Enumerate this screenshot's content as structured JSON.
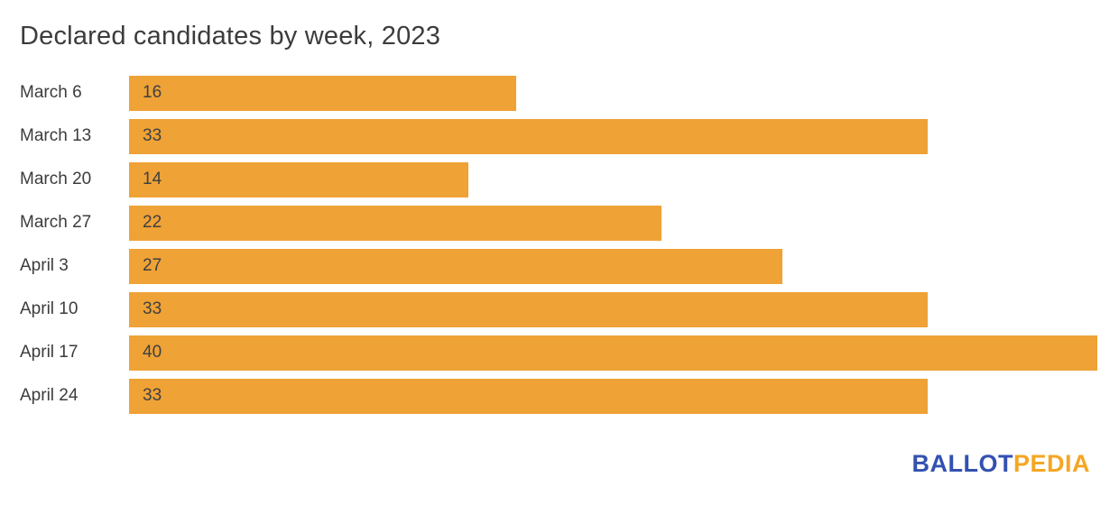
{
  "title": "Declared candidates by week, 2023",
  "chart_data": {
    "type": "bar",
    "orientation": "horizontal",
    "title": "Declared candidates by week, 2023",
    "categories": [
      "March 6",
      "March 13",
      "March 20",
      "March 27",
      "April 3",
      "April 10",
      "April 17",
      "April 24"
    ],
    "values": [
      16,
      33,
      14,
      22,
      27,
      33,
      40,
      33
    ],
    "xlabel": "",
    "ylabel": "",
    "xlim": [
      0,
      40
    ],
    "grid": false,
    "legend": "none",
    "bar_color": "#EFA236",
    "label_color": "#3c3c3c",
    "value_label_color": "#404040",
    "value_labels_position": "inside-left"
  },
  "branding": {
    "logo_part1": "BALLOT",
    "logo_part2": "PEDIA",
    "logo_blue": "#3351B0",
    "logo_orange": "#F5A623"
  }
}
